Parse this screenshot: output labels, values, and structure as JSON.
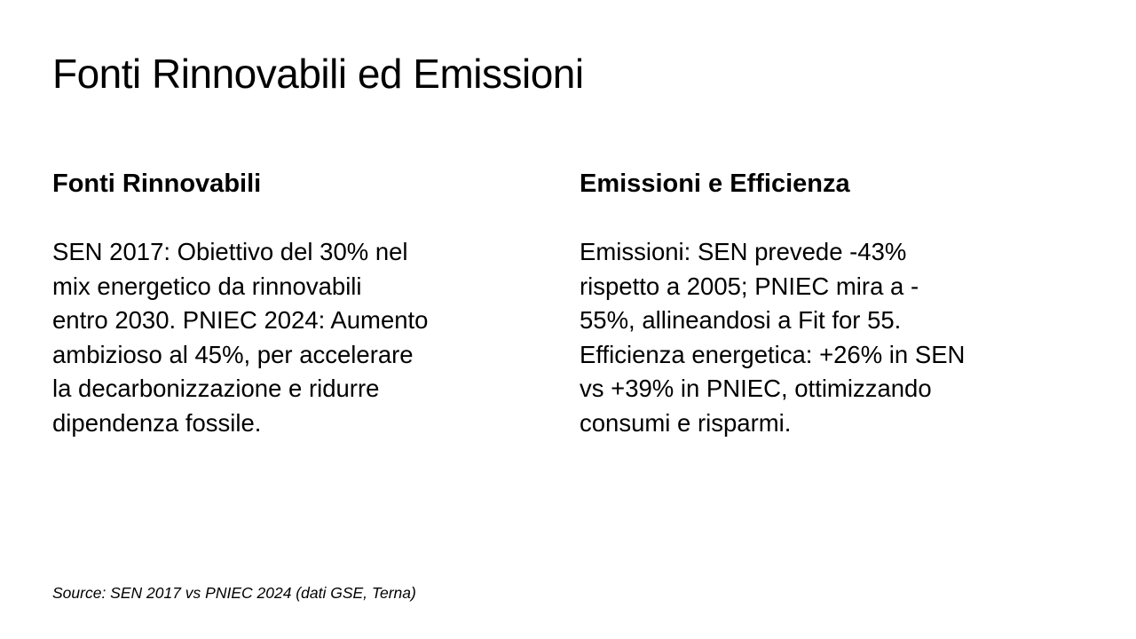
{
  "slide": {
    "title": "Fonti Rinnovabili ed Emissioni",
    "columns": [
      {
        "heading": "Fonti Rinnovabili",
        "body": "SEN 2017: Obiettivo del 30% nel\nmix energetico da rinnovabili\nentro 2030. PNIEC 2024: Aumento\nambizioso al 45%, per accelerare\nla decarbonizzazione e ridurre\ndipendenza fossile."
      },
      {
        "heading": "Emissioni e Efficienza",
        "body": "Emissioni: SEN prevede -43%\nrispetto a 2005; PNIEC mira a -\n55%, allineandosi a Fit for 55.\nEfficienza energetica: +26% in SEN\nvs +39% in PNIEC, ottimizzando\nconsumi e risparmi."
      }
    ],
    "source": "Source: SEN 2017 vs PNIEC 2024 (dati GSE, Terna)"
  },
  "colors": {
    "background": "#ffffff",
    "text": "#000000"
  }
}
